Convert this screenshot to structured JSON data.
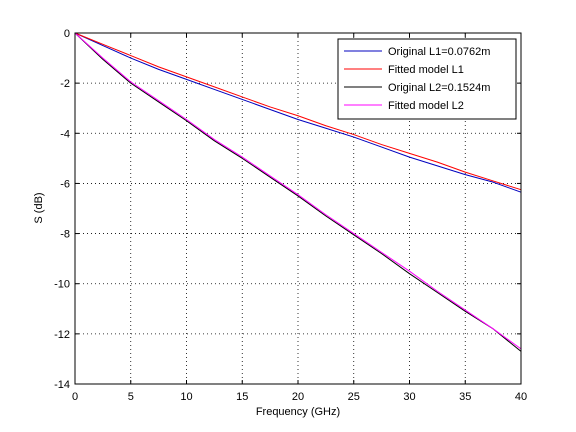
{
  "chart_data": {
    "type": "line",
    "xlabel": "Frequency (GHz)",
    "ylabel": "S (dB)",
    "xlim": [
      0,
      40
    ],
    "ylim": [
      -14,
      0
    ],
    "xticks": [
      0,
      5,
      10,
      15,
      20,
      25,
      30,
      35,
      40
    ],
    "yticks": [
      0,
      -2,
      -4,
      -6,
      -8,
      -10,
      -12,
      -14
    ],
    "grid": true,
    "grid_style": "dotted",
    "legend_position": "top-right",
    "x": [
      0,
      2.5,
      5,
      7.5,
      10,
      12.5,
      15,
      17.5,
      20,
      22.5,
      25,
      27.5,
      30,
      32.5,
      35,
      37.5,
      40
    ],
    "series": [
      {
        "name": "Original L1=0.0762m",
        "color": "#0000bf",
        "values": [
          0,
          -0.5,
          -1.0,
          -1.45,
          -1.85,
          -2.25,
          -2.65,
          -3.05,
          -3.45,
          -3.8,
          -4.15,
          -4.55,
          -4.95,
          -5.3,
          -5.65,
          -5.95,
          -6.35
        ]
      },
      {
        "name": "Fitted model L1",
        "color": "#ff0000",
        "values": [
          0,
          -0.45,
          -0.9,
          -1.35,
          -1.75,
          -2.15,
          -2.55,
          -2.95,
          -3.3,
          -3.7,
          -4.05,
          -4.45,
          -4.8,
          -5.15,
          -5.55,
          -5.9,
          -6.25
        ]
      },
      {
        "name": "Original L2=0.1524m",
        "color": "#000000",
        "values": [
          0,
          -1.05,
          -2.0,
          -2.75,
          -3.5,
          -4.3,
          -5.0,
          -5.75,
          -6.5,
          -7.3,
          -8.05,
          -8.8,
          -9.6,
          -10.35,
          -11.1,
          -11.8,
          -12.7
        ]
      },
      {
        "name": "Fitted model L2",
        "color": "#ff00ff",
        "values": [
          0,
          -1.0,
          -1.95,
          -2.7,
          -3.45,
          -4.25,
          -4.95,
          -5.7,
          -6.45,
          -7.25,
          -8.0,
          -8.75,
          -9.5,
          -10.3,
          -11.05,
          -11.8,
          -12.6
        ]
      }
    ]
  }
}
